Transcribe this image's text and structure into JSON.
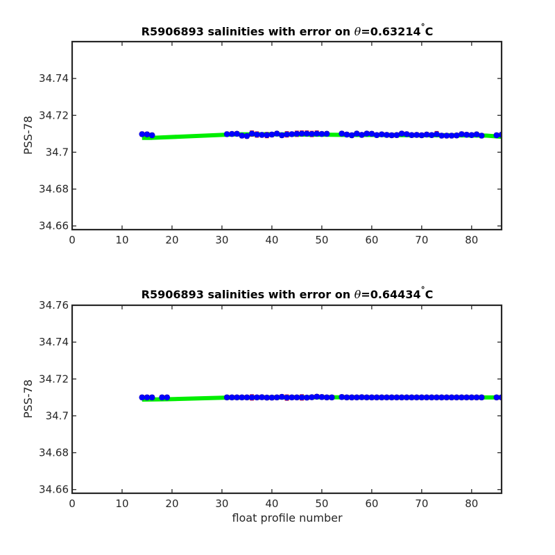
{
  "chart_data": [
    {
      "type": "scatter",
      "title_prefix": "R5906893 salinities with error on ",
      "title_theta": "θ",
      "title_value": "=0.63214",
      "title_degree": "°",
      "title_unit": "C",
      "xlabel": "",
      "ylabel": "PSS-78",
      "xlim": [
        0,
        86
      ],
      "ylim": [
        34.658,
        34.76
      ],
      "xticks": [
        0,
        10,
        20,
        30,
        40,
        50,
        60,
        70,
        80
      ],
      "xtick_labels": [
        "0",
        "10",
        "20",
        "30",
        "40",
        "50",
        "60",
        "70",
        "80"
      ],
      "yticks": [
        34.66,
        34.68,
        34.7,
        34.72,
        34.74
      ],
      "ytick_labels": [
        "34.66",
        "34.68",
        "34.7",
        "34.72",
        "34.74"
      ],
      "fit_line": {
        "color": "#00ee00",
        "x": [
          14,
          16,
          31,
          33,
          40,
          45,
          50,
          55,
          60,
          65,
          70,
          75,
          80,
          83,
          86
        ],
        "y": [
          34.7078,
          34.7078,
          34.7095,
          34.7097,
          34.7097,
          34.7096,
          34.7095,
          34.7094,
          34.7094,
          34.7093,
          34.7092,
          34.7092,
          34.7091,
          34.709,
          34.7084
        ]
      },
      "points": {
        "color": "#0000ff",
        "error_color": "#ff0000",
        "x": [
          14,
          15,
          16,
          31,
          32,
          33,
          34,
          35,
          36,
          37,
          38,
          39,
          40,
          41,
          42,
          43,
          44,
          45,
          46,
          47,
          48,
          49,
          50,
          51,
          54,
          55,
          56,
          57,
          58,
          59,
          60,
          61,
          62,
          63,
          64,
          65,
          66,
          67,
          68,
          69,
          70,
          71,
          72,
          73,
          74,
          75,
          76,
          77,
          78,
          79,
          80,
          81,
          82,
          85,
          86
        ],
        "y": [
          34.7098,
          34.7097,
          34.7092,
          34.7098,
          34.7099,
          34.71,
          34.709,
          34.7088,
          34.7101,
          34.7096,
          34.7094,
          34.7093,
          34.7096,
          34.7101,
          34.7092,
          34.7097,
          34.7098,
          34.71,
          34.7101,
          34.7101,
          34.7099,
          34.7101,
          34.7099,
          34.71,
          34.7101,
          34.7096,
          34.7092,
          34.7101,
          34.7094,
          34.7101,
          34.71,
          34.7093,
          34.7097,
          34.7094,
          34.7092,
          34.7093,
          34.7101,
          34.7098,
          34.7093,
          34.7094,
          34.7092,
          34.7096,
          34.7093,
          34.7098,
          34.709,
          34.709,
          34.709,
          34.7091,
          34.7098,
          34.7095,
          34.7093,
          34.7097,
          34.709,
          34.7092,
          34.7095
        ],
        "err": [
          0.0012,
          0.0012,
          0.0012,
          0.0012,
          0.0012,
          0.0012,
          0.0012,
          0.0012,
          0.0015,
          0.0015,
          0.0012,
          0.0015,
          0.0012,
          0.0012,
          0.0012,
          0.0015,
          0.0012,
          0.0015,
          0.0015,
          0.0015,
          0.0015,
          0.0015,
          0.0012,
          0.0012,
          0.0012,
          0.0012,
          0.0012,
          0.0012,
          0.0012,
          0.0012,
          0.0012,
          0.0012,
          0.0012,
          0.0012,
          0.0012,
          0.0012,
          0.0012,
          0.0012,
          0.0012,
          0.0012,
          0.0012,
          0.0012,
          0.0012,
          0.0015,
          0.0012,
          0.0012,
          0.0012,
          0.0012,
          0.0012,
          0.0012,
          0.0012,
          0.0012,
          0.0012,
          0.0012,
          0.0012
        ]
      }
    },
    {
      "type": "scatter",
      "title_prefix": "R5906893 salinities with error on ",
      "title_theta": "θ",
      "title_value": "=0.64434",
      "title_degree": "°",
      "title_unit": "C",
      "xlabel": "float profile number",
      "ylabel": "PSS-78",
      "xlim": [
        0,
        86
      ],
      "ylim": [
        34.658,
        34.76
      ],
      "xticks": [
        0,
        10,
        20,
        30,
        40,
        50,
        60,
        70,
        80
      ],
      "xtick_labels": [
        "0",
        "10",
        "20",
        "30",
        "40",
        "50",
        "60",
        "70",
        "80"
      ],
      "yticks": [
        34.66,
        34.68,
        34.7,
        34.72,
        34.74,
        34.76
      ],
      "ytick_labels": [
        "34.66",
        "34.68",
        "34.7",
        "34.72",
        "34.74",
        "34.76"
      ],
      "fit_line": {
        "color": "#00ee00",
        "x": [
          14,
          19,
          31,
          40,
          50,
          60,
          70,
          80,
          86
        ],
        "y": [
          34.7088,
          34.709,
          34.7099,
          34.71,
          34.7101,
          34.71,
          34.71,
          34.71,
          34.71
        ]
      },
      "points": {
        "color": "#0000ff",
        "error_color": "#ff0000",
        "x": [
          14,
          15,
          16,
          18,
          19,
          31,
          32,
          33,
          34,
          35,
          36,
          37,
          38,
          39,
          40,
          41,
          42,
          43,
          44,
          45,
          46,
          47,
          48,
          49,
          50,
          51,
          52,
          54,
          55,
          56,
          57,
          58,
          59,
          60,
          61,
          62,
          63,
          64,
          65,
          66,
          67,
          68,
          69,
          70,
          71,
          72,
          73,
          74,
          75,
          76,
          77,
          78,
          79,
          80,
          81,
          82,
          85,
          86
        ],
        "y": [
          34.71,
          34.71,
          34.71,
          34.71,
          34.71,
          34.71,
          34.71,
          34.71,
          34.71,
          34.71,
          34.71,
          34.71,
          34.7101,
          34.7099,
          34.7099,
          34.71,
          34.7103,
          34.7099,
          34.71,
          34.71,
          34.71,
          34.7099,
          34.7101,
          34.7104,
          34.7102,
          34.71,
          34.71,
          34.7102,
          34.71,
          34.71,
          34.71,
          34.7101,
          34.71,
          34.71,
          34.71,
          34.71,
          34.71,
          34.71,
          34.71,
          34.71,
          34.71,
          34.71,
          34.71,
          34.71,
          34.71,
          34.71,
          34.71,
          34.71,
          34.71,
          34.71,
          34.71,
          34.71,
          34.71,
          34.71,
          34.71,
          34.71,
          34.71,
          34.71
        ],
        "err": [
          0.0012,
          0.0012,
          0.0012,
          0.0012,
          0.0012,
          0.0012,
          0.0012,
          0.0012,
          0.0012,
          0.0012,
          0.0015,
          0.0012,
          0.0012,
          0.0012,
          0.0012,
          0.0012,
          0.0012,
          0.0015,
          0.0012,
          0.0012,
          0.0015,
          0.0012,
          0.0012,
          0.0012,
          0.0012,
          0.0012,
          0.0012,
          0.0012,
          0.0012,
          0.0012,
          0.0012,
          0.0012,
          0.0012,
          0.0012,
          0.0012,
          0.0012,
          0.0012,
          0.0012,
          0.0012,
          0.0012,
          0.0012,
          0.0012,
          0.0012,
          0.0012,
          0.0012,
          0.0012,
          0.0012,
          0.0012,
          0.0012,
          0.0012,
          0.0012,
          0.0012,
          0.0012,
          0.0012,
          0.0012,
          0.0012,
          0.0012,
          0.0012
        ]
      }
    }
  ]
}
